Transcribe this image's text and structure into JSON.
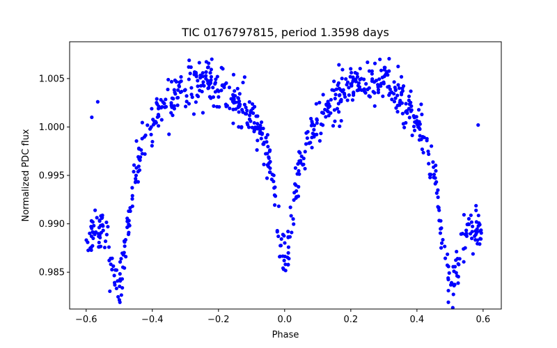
{
  "chart_data": {
    "type": "scatter",
    "title": "TIC 0176797815, period 1.3598 days",
    "xlabel": "Phase",
    "ylabel": "Normalized PDC flux",
    "xlim": [
      -0.65,
      0.655
    ],
    "ylim": [
      0.9812,
      1.0088
    ],
    "xticks": [
      -0.6,
      -0.4,
      -0.2,
      0.0,
      0.2,
      0.4,
      0.6
    ],
    "xtick_labels": [
      "−0.6",
      "−0.4",
      "−0.2",
      "0.0",
      "0.2",
      "0.4",
      "0.6"
    ],
    "yticks": [
      0.985,
      0.99,
      0.995,
      1.0,
      1.005
    ],
    "ytick_labels": [
      "0.985",
      "0.990",
      "0.995",
      "1.000",
      "1.005"
    ],
    "grid": false,
    "marker_color": "#0000ff",
    "model": {
      "baseline": 0.9945,
      "max_amplitude": 0.0103,
      "hump_centers": [
        -0.22,
        0.18
      ],
      "dips": [
        {
          "center": 0.0,
          "depth": 0.0085,
          "halfwidth": 0.045
        },
        {
          "center": -0.5,
          "depth": 0.0105,
          "halfwidth": 0.06
        },
        {
          "center": 0.5,
          "depth": 0.0105,
          "halfwidth": 0.06
        }
      ],
      "scatter": 0.0011
    },
    "outliers": [
      {
        "x": -0.583,
        "y": 1.001
      },
      {
        "x": -0.565,
        "y": 1.0026
      },
      {
        "x": -0.498,
        "y": 0.9819
      },
      {
        "x": -0.003,
        "y": 0.9853
      },
      {
        "x": 0.495,
        "y": 0.9819
      },
      {
        "x": 0.585,
        "y": 1.0002
      }
    ],
    "n_points": 780
  }
}
